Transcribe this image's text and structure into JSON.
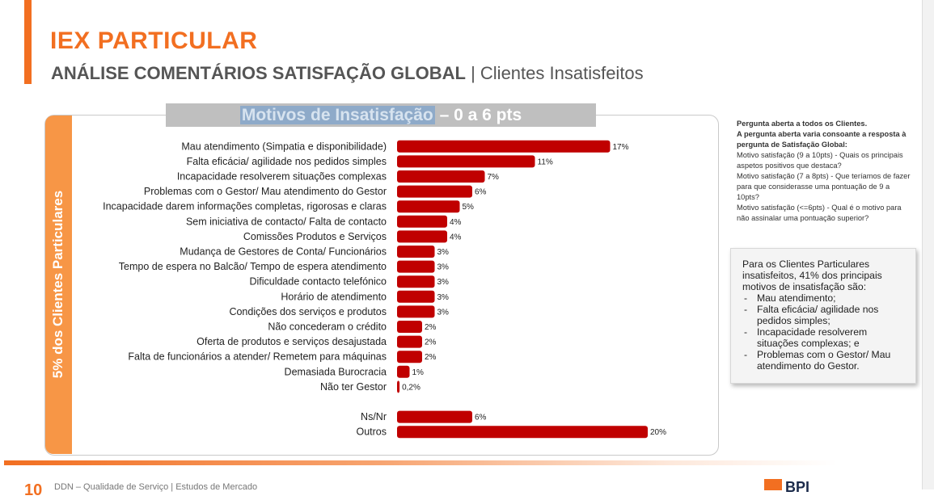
{
  "header": {
    "title": "IEX PARTICULAR",
    "subtitle_main": "ANÁLISE COMENTÁRIOS SATISFAÇÃO GLOBAL",
    "subtitle_sep": "|",
    "subtitle_rest": "Clientes Insatisfeitos"
  },
  "chart_header": {
    "highlight": "Motivos de Insatisfação",
    "rest": " – 0 a 6 pts"
  },
  "side_label": "5% dos Clientes Particulares",
  "chart_data": {
    "type": "bar",
    "orientation": "horizontal",
    "unit": "%",
    "bar_color": "#c00000",
    "categories": [
      "Mau atendimento (Simpatia e disponibilidade)",
      "Falta eficácia/ agilidade nos pedidos simples",
      "Incapacidade resolverem situações complexas",
      "Problemas com o Gestor/ Mau atendimento do Gestor",
      "Incapacidade darem informações completas, rigorosas e claras",
      "Sem iniciativa de contacto/ Falta de contacto",
      "Comissões Produtos e Serviços",
      "Mudança de Gestores de Conta/ Funcionários",
      "Tempo de espera no Balcão/ Tempo de espera atendimento",
      "Dificuldade contacto telefónico",
      "Horário de atendimento",
      "Condições dos serviços e produtos",
      "Não concederam o crédito",
      "Oferta de produtos e serviços desajustada",
      "Falta de funcionários a atender/ Remetem para máquinas",
      "Demasiada Burocracia",
      "Não ter Gestor",
      "",
      "Ns/Nr",
      "Outros"
    ],
    "values": [
      17,
      11,
      7,
      6,
      5,
      4,
      4,
      3,
      3,
      3,
      3,
      3,
      2,
      2,
      2,
      1,
      0.2,
      null,
      6,
      20
    ],
    "value_labels": [
      "17%",
      "11%",
      "7%",
      "6%",
      "5%",
      "4%",
      "4%",
      "3%",
      "3%",
      "3%",
      "3%",
      "3%",
      "2%",
      "2%",
      "2%",
      "1%",
      "0,2%",
      "",
      "6%",
      "20%"
    ]
  },
  "note": {
    "lines_bold": [
      "Pergunta aberta a todos os Clientes.",
      "A pergunta aberta varia consoante a resposta à pergunta de Satisfação Global:"
    ],
    "lines": [
      "Motivo satisfação (9 a 10pts) - Quais os principais aspetos positivos que destaca?",
      "Motivo satisfação (7 a 8pts) - Que teríamos de fazer para que considerasse uma pontuação de 9 a 10pts?",
      "Motivo satisfação (<=6pts) - Qual é o motivo para não assinalar uma pontuação superior?"
    ]
  },
  "summary": {
    "intro": "Para os Clientes Particulares insatisfeitos, 41% dos principais motivos de insatisfação são:",
    "items": [
      "Mau atendimento;",
      "Falta eficácia/ agilidade nos pedidos simples;",
      "Incapacidade resolverem situações complexas; e",
      "Problemas com o Gestor/ Mau atendimento do Gestor."
    ]
  },
  "footer": {
    "page_number": "10",
    "text": "DDN – Qualidade de Serviço | Estudos de Mercado",
    "logo_text": "BPI"
  }
}
